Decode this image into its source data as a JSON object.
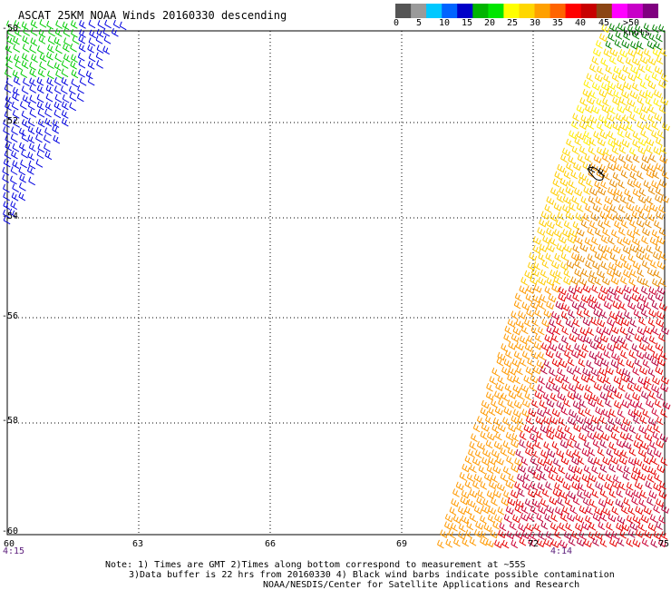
{
  "title": "ASCAT 25KM NOAA Winds 20160330 descending",
  "legend": {
    "labels": [
      "0",
      "5",
      "10",
      "15",
      "20",
      "25",
      "30",
      "35",
      "40",
      "45",
      ">50 knots"
    ],
    "colors": [
      "#555555",
      "#9a9a9a",
      "#00c8ff",
      "#0064ff",
      "#0000c8",
      "#00b400",
      "#00e600",
      "#ffff00",
      "#ffd700",
      "#ffa000",
      "#ff6400",
      "#ff0000",
      "#c80000",
      "#8b4513",
      "#ff00ff",
      "#c800c8",
      "#800080"
    ]
  },
  "axes": {
    "y_labels": [
      "-50",
      "-52",
      "-54",
      "-56",
      "-58",
      "-60"
    ],
    "x_labels": [
      "60",
      "63",
      "66",
      "69",
      "72",
      "75"
    ],
    "time_left": "4:15",
    "time_right": "4:14"
  },
  "notes": {
    "line1": "Note: 1) Times are GMT 2)Times along bottom correspond to measurement at ~55S",
    "line2": "3)Data buffer is 22 hrs from 20160330 4) Black wind barbs indicate possible contamination",
    "line3": "NOAA/NESDIS/Center for Satellite Applications and Research"
  }
}
